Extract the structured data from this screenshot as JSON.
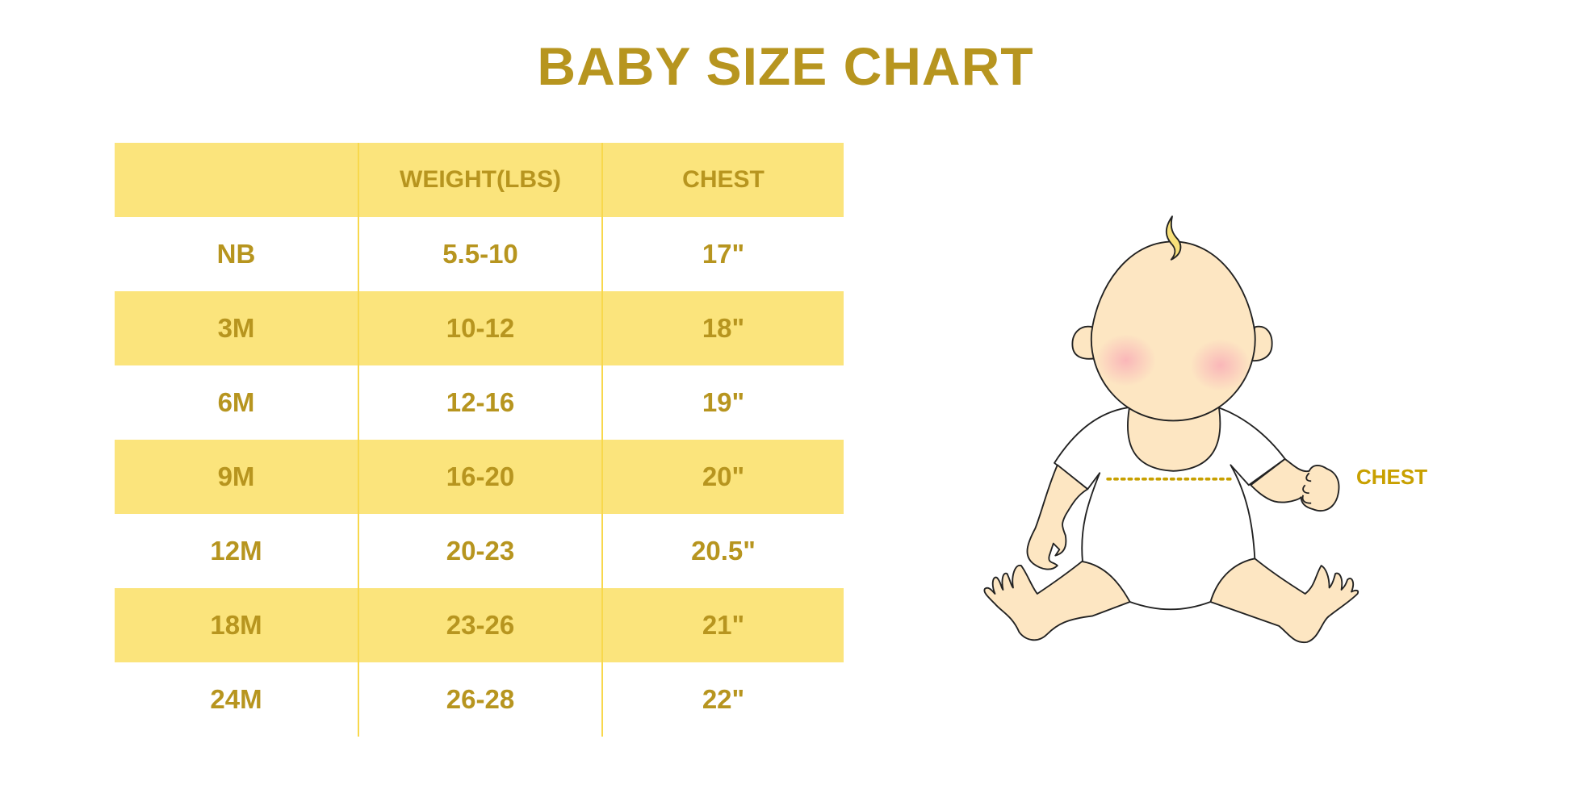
{
  "title": "BABY SIZE CHART",
  "table": {
    "headers": [
      "",
      "WEIGHT(LBS)",
      "CHEST"
    ],
    "rows": [
      [
        "NB",
        "5.5-10",
        "17\""
      ],
      [
        "3M",
        "10-12",
        "18\""
      ],
      [
        "6M",
        "12-16",
        "19\""
      ],
      [
        "9M",
        "16-20",
        "20\""
      ],
      [
        "12M",
        "20-23",
        "20.5\""
      ],
      [
        "18M",
        "23-26",
        "21\""
      ],
      [
        "24M",
        "26-28",
        "22\""
      ]
    ]
  },
  "illustration": {
    "chest_label": "CHEST"
  },
  "colors": {
    "text": "#b7951f",
    "band": "#fbe47c",
    "divider": "#f8d84c",
    "skin": "#fde6c2",
    "cheek": "#f9b4b8"
  }
}
